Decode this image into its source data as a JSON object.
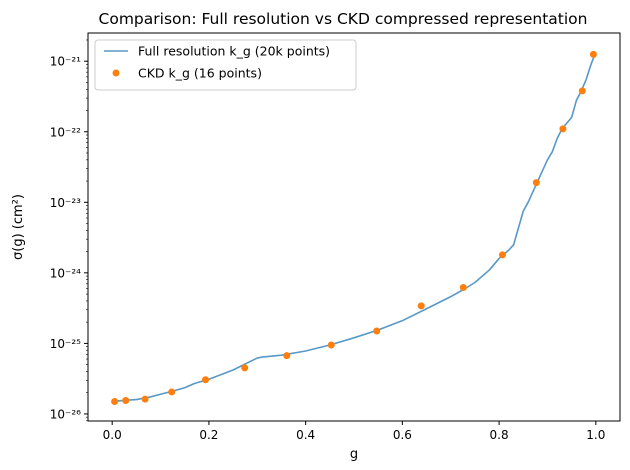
{
  "chart_data": {
    "type": "line",
    "title": "Comparison: Full resolution vs CKD compressed representation",
    "xlabel": "g",
    "ylabel": "σ(g) (cm²)",
    "xlim": [
      -0.05,
      1.05
    ],
    "ylim_log10": [
      -26.1,
      -20.6
    ],
    "yscale": "log",
    "grid": false,
    "legend_position": "top-left",
    "x_ticks": [
      {
        "value": 0.0,
        "label": "0.0"
      },
      {
        "value": 0.2,
        "label": "0.2"
      },
      {
        "value": 0.4,
        "label": "0.4"
      },
      {
        "value": 0.6,
        "label": "0.6"
      },
      {
        "value": 0.8,
        "label": "0.8"
      },
      {
        "value": 1.0,
        "label": "1.0"
      }
    ],
    "y_ticks": [
      {
        "exp": -26,
        "label": "10⁻²⁶"
      },
      {
        "exp": -25,
        "label": "10⁻²⁵"
      },
      {
        "exp": -24,
        "label": "10⁻²⁴"
      },
      {
        "exp": -23,
        "label": "10⁻²³"
      },
      {
        "exp": -22,
        "label": "10⁻²²"
      },
      {
        "exp": -21,
        "label": "10⁻²¹"
      }
    ],
    "series": [
      {
        "name": "Full resolution k_g (20k points)",
        "kind": "line",
        "color": "#1f77b4",
        "x": [
          0.0,
          0.02,
          0.05,
          0.08,
          0.1,
          0.13,
          0.15,
          0.17,
          0.2,
          0.25,
          0.3,
          0.31,
          0.35,
          0.4,
          0.45,
          0.5,
          0.55,
          0.6,
          0.65,
          0.7,
          0.73,
          0.75,
          0.78,
          0.8,
          0.82,
          0.83,
          0.85,
          0.86,
          0.88,
          0.9,
          0.91,
          0.92,
          0.93,
          0.95,
          0.96,
          0.97,
          0.98,
          0.99,
          1.0
        ],
        "y": [
          1.5e-26,
          1.55e-26,
          1.6e-26,
          1.75e-26,
          1.9e-26,
          2.15e-26,
          2.35e-26,
          2.7e-26,
          3.1e-26,
          4.2e-26,
          6.2e-26,
          6.4e-26,
          6.8e-26,
          7.8e-26,
          9.5e-26,
          1.2e-25,
          1.55e-25,
          2.1e-25,
          3.1e-25,
          4.6e-25,
          6e-25,
          7.3e-25,
          1.1e-24,
          1.6e-24,
          2.1e-24,
          2.5e-24,
          7.5e-24,
          1e-23,
          2e-23,
          4e-23,
          5.2e-23,
          8e-23,
          1.1e-22,
          1.6e-22,
          2.8e-22,
          3.8e-22,
          5.5e-22,
          9e-22,
          1.35e-21
        ]
      },
      {
        "name": "CKD k_g (16 points)",
        "kind": "scatter",
        "color": "#ff7f0e",
        "x": [
          0.005,
          0.028,
          0.068,
          0.123,
          0.193,
          0.274,
          0.361,
          0.453,
          0.547,
          0.639,
          0.726,
          0.807,
          0.877,
          0.932,
          0.972,
          0.995
        ],
        "y": [
          1.5e-26,
          1.55e-26,
          1.62e-26,
          2.05e-26,
          3.05e-26,
          4.5e-26,
          6.7e-26,
          9.5e-26,
          1.5e-25,
          3.4e-25,
          6.2e-25,
          1.8e-24,
          1.9e-23,
          1.1e-22,
          3.8e-22,
          1.25e-21
        ]
      }
    ]
  }
}
